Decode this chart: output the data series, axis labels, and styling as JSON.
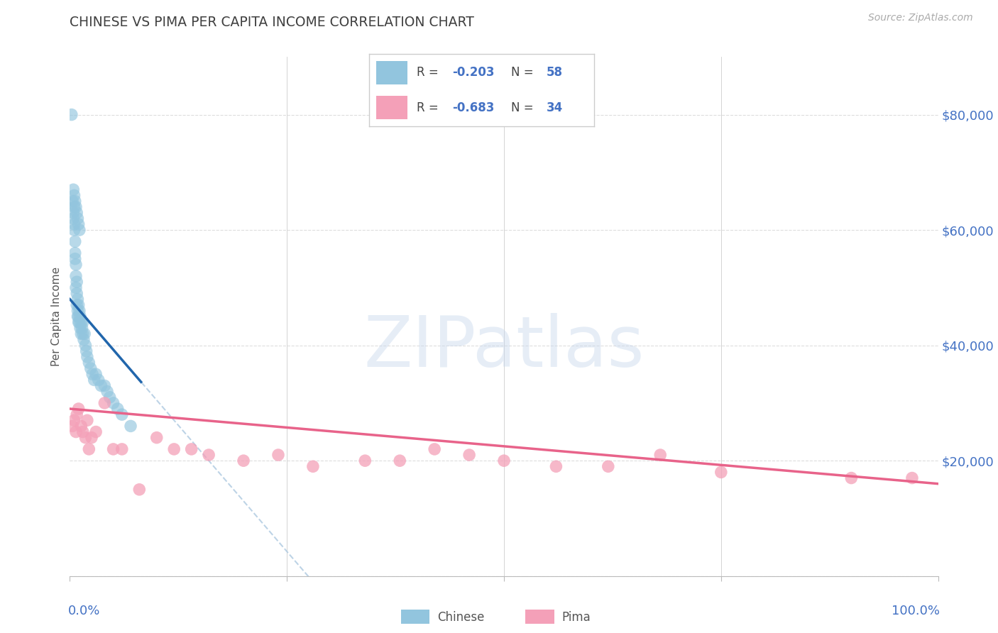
{
  "title": "CHINESE VS PIMA PER CAPITA INCOME CORRELATION CHART",
  "source": "Source: ZipAtlas.com",
  "ylabel": "Per Capita Income",
  "xlim": [
    0.0,
    1.0
  ],
  "ylim": [
    0,
    90000
  ],
  "yticks": [
    0,
    20000,
    40000,
    60000,
    80000
  ],
  "ytick_labels": [
    "",
    "$20,000",
    "$40,000",
    "$60,000",
    "$80,000"
  ],
  "chinese_R": -0.203,
  "chinese_N": 58,
  "pima_R": -0.683,
  "pima_N": 34,
  "chinese_color": "#92c5de",
  "pima_color": "#f4a0b8",
  "chinese_line_color": "#2166ac",
  "pima_line_color": "#e8638a",
  "dashed_line_color": "#adc9e0",
  "background_color": "#ffffff",
  "grid_color": "#dddddd",
  "axis_label_color": "#4472c4",
  "text_color": "#555555",
  "chinese_x": [
    0.002,
    0.003,
    0.004,
    0.004,
    0.005,
    0.005,
    0.005,
    0.006,
    0.006,
    0.006,
    0.007,
    0.007,
    0.007,
    0.008,
    0.008,
    0.008,
    0.009,
    0.009,
    0.009,
    0.01,
    0.01,
    0.01,
    0.011,
    0.011,
    0.012,
    0.012,
    0.013,
    0.013,
    0.014,
    0.015,
    0.015,
    0.016,
    0.017,
    0.018,
    0.019,
    0.02,
    0.022,
    0.024,
    0.026,
    0.028,
    0.03,
    0.033,
    0.036,
    0.04,
    0.043,
    0.046,
    0.05,
    0.055,
    0.06,
    0.07,
    0.004,
    0.005,
    0.006,
    0.007,
    0.008,
    0.009,
    0.01,
    0.011
  ],
  "chinese_y": [
    80000,
    65000,
    63000,
    62000,
    64000,
    61000,
    60000,
    58000,
    56000,
    55000,
    54000,
    52000,
    50000,
    51000,
    49000,
    47000,
    48000,
    46000,
    45000,
    47000,
    45000,
    44000,
    46000,
    44000,
    45000,
    43000,
    44000,
    42000,
    43000,
    44000,
    42000,
    41000,
    42000,
    40000,
    39000,
    38000,
    37000,
    36000,
    35000,
    34000,
    35000,
    34000,
    33000,
    33000,
    32000,
    31000,
    30000,
    29000,
    28000,
    26000,
    67000,
    66000,
    65000,
    64000,
    63000,
    62000,
    61000,
    60000
  ],
  "pima_x": [
    0.003,
    0.005,
    0.007,
    0.008,
    0.01,
    0.013,
    0.015,
    0.018,
    0.02,
    0.022,
    0.025,
    0.03,
    0.04,
    0.05,
    0.06,
    0.08,
    0.1,
    0.12,
    0.14,
    0.16,
    0.2,
    0.24,
    0.28,
    0.34,
    0.38,
    0.42,
    0.46,
    0.5,
    0.56,
    0.62,
    0.68,
    0.75,
    0.9,
    0.97
  ],
  "pima_y": [
    26000,
    27000,
    25000,
    28000,
    29000,
    26000,
    25000,
    24000,
    27000,
    22000,
    24000,
    25000,
    30000,
    22000,
    22000,
    15000,
    24000,
    22000,
    22000,
    21000,
    20000,
    21000,
    19000,
    20000,
    20000,
    22000,
    21000,
    20000,
    19000,
    19000,
    21000,
    18000,
    17000,
    17000
  ]
}
